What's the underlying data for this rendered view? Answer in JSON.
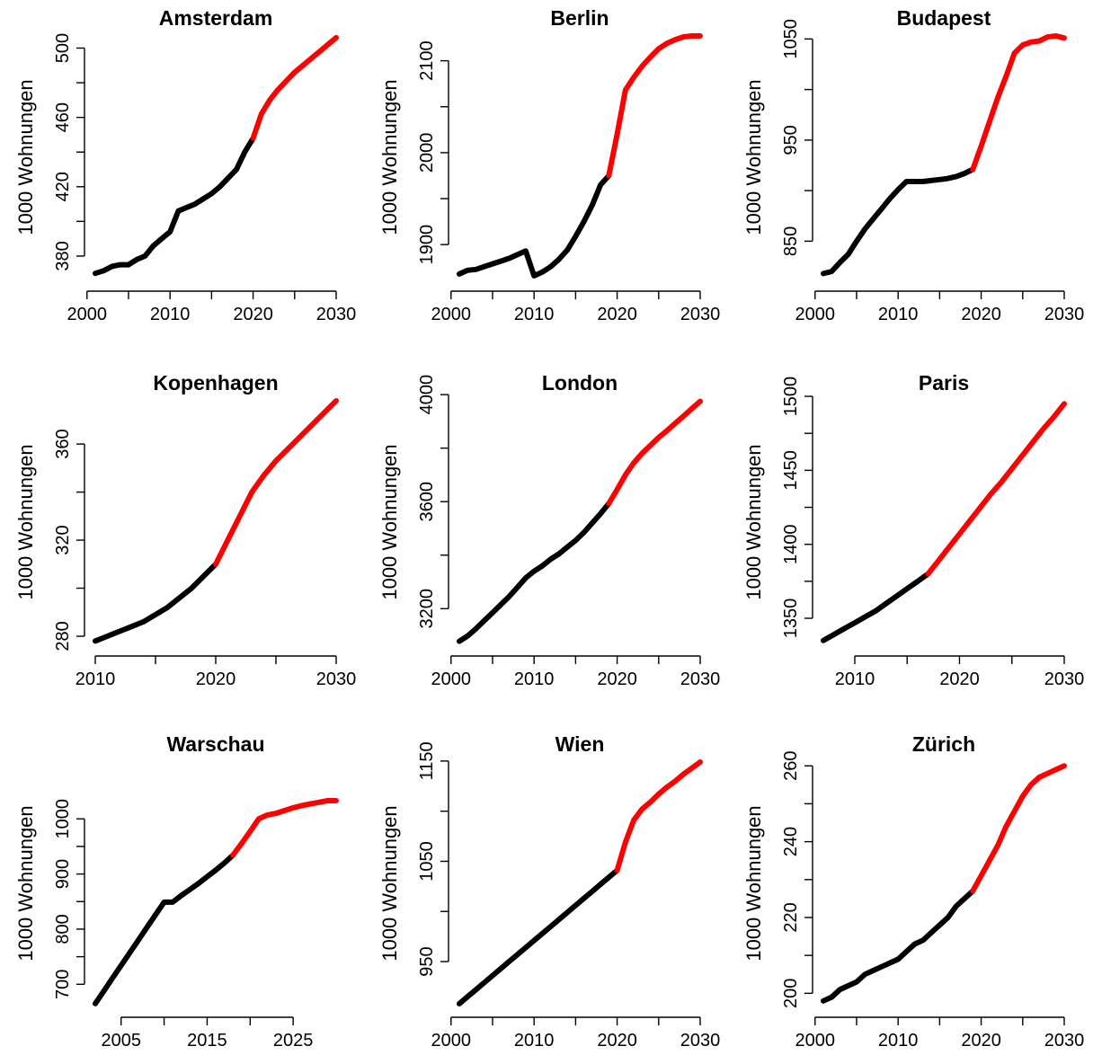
{
  "chart_data": [
    {
      "type": "line",
      "title": "Amsterdam",
      "ylabel": "1000 Wohnungen",
      "xlim": [
        2001,
        2030
      ],
      "ylim": [
        367,
        507
      ],
      "xticks": [
        2000,
        2010,
        2020,
        2030
      ],
      "yticks": [
        380,
        420,
        460,
        500
      ],
      "series": [
        {
          "color": "#000000",
          "x": [
            2001,
            2002,
            2003,
            2004,
            2005,
            2006,
            2007,
            2008,
            2009,
            2010,
            2011,
            2012,
            2013,
            2014,
            2015,
            2016,
            2017,
            2018,
            2019,
            2020
          ],
          "y": [
            370,
            371.5,
            374,
            375,
            375,
            378,
            380,
            386,
            390,
            394,
            406,
            408,
            410,
            413,
            416,
            420,
            425,
            430,
            440,
            448
          ]
        },
        {
          "color": "#ff0000",
          "x": [
            2020,
            2021,
            2022,
            2023,
            2024,
            2025,
            2026,
            2027,
            2028,
            2029,
            2030
          ],
          "y": [
            448,
            462,
            470,
            476,
            481,
            486,
            490,
            494,
            498,
            502,
            506
          ]
        }
      ]
    },
    {
      "type": "line",
      "title": "Berlin",
      "ylabel": "1000 Wohnungen",
      "xlim": [
        2001,
        2030
      ],
      "ylim": [
        1863,
        2127
      ],
      "xticks": [
        2000,
        2010,
        2020,
        2030
      ],
      "yticks": [
        1900,
        2000,
        2100
      ],
      "series": [
        {
          "color": "#000000",
          "x": [
            2001,
            2002,
            2003,
            2004,
            2005,
            2006,
            2007,
            2008,
            2009,
            2010,
            2011,
            2012,
            2013,
            2014,
            2015,
            2016,
            2017,
            2018,
            2019
          ],
          "y": [
            1868,
            1872,
            1873,
            1876,
            1879,
            1882,
            1885,
            1889,
            1893,
            1866,
            1870,
            1876,
            1884,
            1894,
            1909,
            1925,
            1943,
            1965,
            1975
          ]
        },
        {
          "color": "#ff0000",
          "x": [
            2019,
            2020,
            2021,
            2022,
            2023,
            2024,
            2025,
            2026,
            2027,
            2028,
            2029,
            2030
          ],
          "y": [
            1975,
            2020,
            2068,
            2082,
            2094,
            2104,
            2113,
            2119,
            2123,
            2126,
            2127,
            2127
          ]
        }
      ]
    },
    {
      "type": "line",
      "title": "Budapest",
      "ylabel": "1000 Wohnungen",
      "xlim": [
        2001,
        2030
      ],
      "ylim": [
        813,
        1053
      ],
      "xticks": [
        2000,
        2010,
        2020,
        2030
      ],
      "yticks": [
        850,
        950,
        1050
      ],
      "series": [
        {
          "color": "#000000",
          "x": [
            2001,
            2002,
            2003,
            2004,
            2005,
            2006,
            2007,
            2008,
            2009,
            2010,
            2011,
            2012,
            2013,
            2014,
            2015,
            2016,
            2017,
            2018,
            2019
          ],
          "y": [
            818,
            820,
            829,
            837,
            850,
            862,
            872,
            882,
            892,
            901,
            909,
            909,
            909,
            910,
            911,
            912,
            914,
            917,
            921
          ]
        },
        {
          "color": "#ff0000",
          "x": [
            2019,
            2020,
            2021,
            2022,
            2023,
            2024,
            2025,
            2026,
            2027,
            2028,
            2029,
            2030
          ],
          "y": [
            921,
            944,
            968,
            992,
            1013,
            1036,
            1044,
            1047,
            1048,
            1052,
            1053,
            1051
          ]
        }
      ]
    },
    {
      "type": "line",
      "title": "Kopenhagen",
      "ylabel": "1000 Wohnungen",
      "xlim": [
        2010,
        2030
      ],
      "ylim": [
        277,
        378
      ],
      "xticks": [
        2010,
        2020,
        2030
      ],
      "yticks": [
        280,
        320,
        360
      ],
      "series": [
        {
          "color": "#000000",
          "x": [
            2010,
            2011,
            2012,
            2013,
            2014,
            2015,
            2016,
            2017,
            2018,
            2019,
            2020
          ],
          "y": [
            278,
            280,
            282,
            284,
            286,
            289,
            292,
            296,
            300,
            305,
            310
          ]
        },
        {
          "color": "#ff0000",
          "x": [
            2020,
            2021,
            2022,
            2023,
            2024,
            2025,
            2026,
            2027,
            2028,
            2029,
            2030
          ],
          "y": [
            310,
            320,
            330,
            340,
            347,
            353,
            358,
            363,
            368,
            373,
            378
          ]
        }
      ]
    },
    {
      "type": "line",
      "title": "London",
      "ylabel": "1000 Wohnungen",
      "xlim": [
        2001,
        2030
      ],
      "ylim": [
        3070,
        3977
      ],
      "xticks": [
        2000,
        2010,
        2020,
        2030
      ],
      "yticks": [
        3200,
        3600,
        4000
      ],
      "series": [
        {
          "color": "#000000",
          "x": [
            2001,
            2002,
            2003,
            2004,
            2005,
            2006,
            2007,
            2008,
            2009,
            2010,
            2011,
            2012,
            2013,
            2014,
            2015,
            2016,
            2017,
            2018,
            2019
          ],
          "y": [
            3078,
            3098,
            3125,
            3155,
            3185,
            3215,
            3245,
            3280,
            3315,
            3340,
            3360,
            3385,
            3405,
            3430,
            3455,
            3485,
            3520,
            3555,
            3593
          ]
        },
        {
          "color": "#ff0000",
          "x": [
            2019,
            2020,
            2021,
            2022,
            2023,
            2024,
            2025,
            2026,
            2027,
            2028,
            2029,
            2030
          ],
          "y": [
            3593,
            3645,
            3700,
            3745,
            3780,
            3810,
            3840,
            3865,
            3893,
            3920,
            3948,
            3975
          ]
        }
      ]
    },
    {
      "type": "line",
      "title": "Paris",
      "ylabel": "1000 Wohnungen",
      "xlim": [
        2007,
        2030
      ],
      "ylim": [
        1333,
        1497
      ],
      "xticks": [
        2010,
        2020,
        2030
      ],
      "yticks": [
        1350,
        1400,
        1450,
        1500
      ],
      "series": [
        {
          "color": "#000000",
          "x": [
            2007,
            2008,
            2009,
            2010,
            2011,
            2012,
            2013,
            2014,
            2015,
            2016,
            2017
          ],
          "y": [
            1335,
            1339,
            1343,
            1347,
            1351,
            1355,
            1360,
            1365,
            1370,
            1375,
            1380
          ]
        },
        {
          "color": "#ff0000",
          "x": [
            2017,
            2018,
            2019,
            2020,
            2021,
            2022,
            2023,
            2024,
            2025,
            2026,
            2027,
            2028,
            2029,
            2030
          ],
          "y": [
            1380,
            1389,
            1398,
            1407,
            1416,
            1425,
            1434,
            1442,
            1451,
            1460,
            1469,
            1478,
            1486,
            1495
          ]
        }
      ]
    },
    {
      "type": "line",
      "title": "Warschau",
      "ylabel": "1000 Wohnungen",
      "xlim": [
        2002,
        2030
      ],
      "ylim": [
        663,
        1103
      ],
      "xticks": [
        2005,
        2015,
        2025
      ],
      "yticks": [
        700,
        800,
        900,
        1000
      ],
      "series": [
        {
          "color": "#000000",
          "x": [
            2002,
            2003,
            2004,
            2005,
            2006,
            2007,
            2008,
            2009,
            2010,
            2011,
            2012,
            2013,
            2014,
            2015,
            2016,
            2017,
            2018
          ],
          "y": [
            665,
            688,
            711,
            734,
            757,
            780,
            803,
            826,
            849,
            849,
            861,
            872,
            883,
            895,
            907,
            920,
            934
          ]
        },
        {
          "color": "#ff0000",
          "x": [
            2018,
            2019,
            2020,
            2021,
            2022,
            2023,
            2024,
            2025,
            2026,
            2027,
            2028,
            2029,
            2030
          ],
          "y": [
            934,
            955,
            977,
            1000,
            1007,
            1010,
            1015,
            1020,
            1024,
            1027,
            1030,
            1033,
            1033
          ]
        }
      ]
    },
    {
      "type": "line",
      "title": "Wien",
      "ylabel": "1000 Wohnungen",
      "xlim": [
        2001,
        2030
      ],
      "ylim": [
        907,
        1149
      ],
      "xticks": [
        2000,
        2010,
        2020,
        2030
      ],
      "yticks": [
        950,
        1050,
        1150
      ],
      "series": [
        {
          "color": "#000000",
          "x": [
            2001,
            2002,
            2003,
            2004,
            2005,
            2006,
            2007,
            2008,
            2009,
            2010,
            2011,
            2012,
            2013,
            2014,
            2015,
            2016,
            2017,
            2018,
            2019,
            2020
          ],
          "y": [
            908,
            915,
            922,
            929,
            936,
            943,
            950,
            957,
            964,
            971,
            978,
            985,
            992,
            999,
            1006,
            1013,
            1020,
            1027,
            1034,
            1041
          ]
        },
        {
          "color": "#ff0000",
          "x": [
            2020,
            2021,
            2022,
            2023,
            2024,
            2025,
            2026,
            2027,
            2028,
            2029,
            2030
          ],
          "y": [
            1041,
            1069,
            1091,
            1102,
            1109,
            1117,
            1124,
            1130,
            1137,
            1143,
            1149
          ]
        }
      ]
    },
    {
      "type": "line",
      "title": "Zürich",
      "ylabel": "1000 Wohnungen",
      "xlim": [
        2001,
        2030
      ],
      "ylim": [
        197,
        261
      ],
      "xticks": [
        2000,
        2010,
        2020,
        2030
      ],
      "yticks": [
        200,
        220,
        240,
        260
      ],
      "series": [
        {
          "color": "#000000",
          "x": [
            2001,
            2002,
            2003,
            2004,
            2005,
            2006,
            2007,
            2008,
            2009,
            2010,
            2011,
            2012,
            2013,
            2014,
            2015,
            2016,
            2017,
            2018,
            2019
          ],
          "y": [
            198,
            199,
            201,
            202,
            203,
            205,
            206,
            207,
            208,
            209,
            211,
            213,
            214,
            216,
            218,
            220,
            223,
            225,
            227
          ]
        },
        {
          "color": "#ff0000",
          "x": [
            2019,
            2020,
            2021,
            2022,
            2023,
            2024,
            2025,
            2026,
            2027,
            2028,
            2029,
            2030
          ],
          "y": [
            227,
            231,
            235,
            239,
            244,
            248,
            252,
            255,
            257,
            258,
            259,
            260
          ]
        }
      ]
    }
  ]
}
